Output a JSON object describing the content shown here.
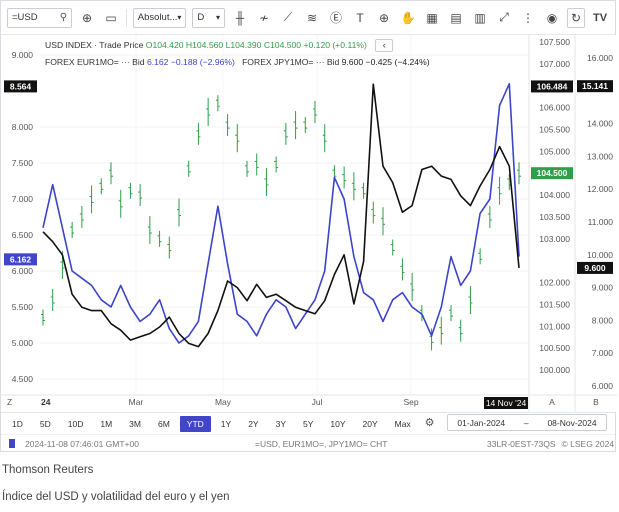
{
  "toolbar": {
    "search_value": "=USD",
    "scale_value": "Absolut...",
    "interval_value": "D"
  },
  "legend": {
    "line1_prefix": "USD INDEX · Trade Price",
    "o": "O104.420",
    "h": "H104.560",
    "l": "L104.390",
    "c": "C104.500",
    "chg": "+0.120 (+0.11%)",
    "line2_series1": "FOREX EUR1MO= ··· Bid",
    "series1_val": "6.162",
    "series1_chg": "−0.188 (−2.96%)",
    "line2_series2": "FOREX JPY1MO= ··· Bid",
    "series2_val": "9.600",
    "series2_chg": "−0.425 (−4.24%)"
  },
  "axes": {
    "left_ticks": [
      "9.000",
      "8.000",
      "7.500",
      "7.000",
      "6.500",
      "6.000",
      "5.500",
      "5.000",
      "4.500"
    ],
    "left_badges": [
      "8.564",
      "6.162"
    ],
    "mid_ticks": [
      "107.500",
      "107.000",
      "106.000",
      "105.500",
      "105.000",
      "104.000",
      "103.500",
      "103.000",
      "102.000",
      "101.500",
      "101.000",
      "100.500",
      "100.000"
    ],
    "mid_badges": [
      "106.484",
      "104.500"
    ],
    "right_ticks": [
      "16.000",
      "14.000",
      "13.000",
      "12.000",
      "11.000",
      "10.000",
      "9.000",
      "8.000",
      "7.000",
      "6.000"
    ],
    "right_badges": [
      "15.141",
      "9.600"
    ],
    "x_ticks": [
      "Mar",
      "May",
      "Jul",
      "Sep"
    ],
    "x_start_label": "24",
    "x_current_label": "14 Nov '24",
    "corner_left": "Z",
    "corner_mid": "A",
    "corner_right": "B"
  },
  "periods": [
    "1D",
    "5D",
    "10D",
    "1M",
    "3M",
    "6M",
    "YTD",
    "1Y",
    "2Y",
    "3Y",
    "5Y",
    "10Y",
    "20Y",
    "Max"
  ],
  "active_period": "YTD",
  "date_range": {
    "from": "01-Jan-2024",
    "separator": "–",
    "to": "08-Nov-2024"
  },
  "status": {
    "timestamp": "2024-11-08 07:46:01 GMT+00",
    "symbols": "=USD, EUR1MO=, JPY1MO= CHT",
    "id": "33LR-0EST-73QS",
    "copyright": "© LSEG 2024"
  },
  "caption": {
    "source": "Thomson Reuters",
    "title": "Índice del USD y volatilidad del euro y el yen"
  },
  "colors": {
    "usd": "#2e9e48",
    "eur": "#3c44c9",
    "jpy": "#111111",
    "accent": "#4146c6"
  },
  "chart_data": {
    "type": "line",
    "series": [
      {
        "name": "USD INDEX",
        "axis": "A",
        "values": [
          101.2,
          101.6,
          102.4,
          103.2,
          103.5,
          103.9,
          104.2,
          104.5,
          103.8,
          104.1,
          104.0,
          103.2,
          103.0,
          102.8,
          103.6,
          104.6,
          105.4,
          105.9,
          106.1,
          105.6,
          105.3,
          104.6,
          104.7,
          104.3,
          104.7,
          105.4,
          105.6,
          105.6,
          105.9,
          105.3,
          104.5,
          104.4,
          104.2,
          104.1,
          103.6,
          103.4,
          102.8,
          102.3,
          101.9,
          101.3,
          100.7,
          100.9,
          101.3,
          100.9,
          101.6,
          102.6,
          103.5,
          104.1,
          104.3,
          104.5
        ]
      },
      {
        "name": "FOREX EUR1MO=",
        "axis": "Z",
        "values": [
          6.6,
          7.2,
          6.6,
          6.0,
          5.9,
          5.8,
          5.6,
          5.5,
          5.8,
          5.5,
          5.3,
          5.4,
          5.6,
          5.2,
          5.0,
          5.1,
          5.3,
          6.1,
          6.9,
          6.1,
          5.4,
          5.3,
          5.1,
          5.4,
          5.6,
          5.5,
          5.2,
          5.4,
          5.6,
          6.0,
          7.3,
          7.0,
          6.2,
          5.7,
          5.6,
          5.3,
          5.6,
          5.7,
          5.5,
          5.4,
          5.1,
          5.5,
          6.2,
          5.8,
          6.0,
          6.8,
          7.0,
          8.3,
          8.6,
          6.2
        ]
      },
      {
        "name": "FOREX JPY1MO=",
        "axis": "B",
        "values": [
          10.7,
          10.4,
          10.0,
          8.8,
          8.4,
          8.3,
          8.3,
          7.9,
          7.7,
          7.4,
          7.5,
          7.6,
          7.8,
          8.1,
          7.6,
          7.3,
          7.2,
          7.6,
          8.3,
          9.2,
          9.0,
          8.6,
          9.1,
          8.7,
          8.8,
          8.6,
          8.4,
          8.3,
          8.2,
          8.6,
          9.4,
          10.0,
          8.5,
          9.8,
          15.2,
          12.7,
          12.2,
          11.3,
          11.5,
          12.6,
          12.7,
          12.4,
          12.3,
          11.8,
          11.5,
          12.1,
          12.6,
          13.3,
          12.7,
          9.6
        ]
      }
    ]
  }
}
